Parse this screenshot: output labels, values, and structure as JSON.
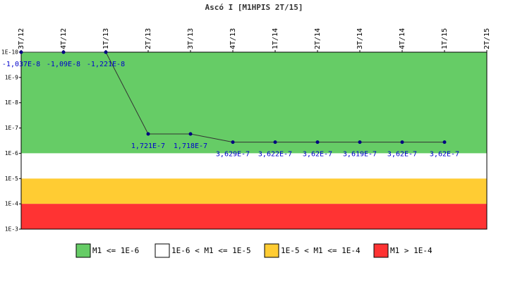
{
  "chart_data": {
    "type": "line",
    "title": "Ascó I [M1HPIS 2T/15]",
    "categories": [
      "3T/12",
      "4T/12",
      "1T/13",
      "2T/13",
      "3T/13",
      "4T/13",
      "1T/14",
      "2T/14",
      "3T/14",
      "4T/14",
      "1T/15",
      "2T/15"
    ],
    "series": [
      {
        "color": "#000080",
        "values": [
          -1.037e-08,
          -1.09e-08,
          -1.221e-08,
          1.721e-07,
          1.718e-07,
          3.629e-07,
          3.622e-07,
          3.62e-07,
          3.619e-07,
          3.62e-07,
          3.62e-07,
          null
        ],
        "value_labels": [
          "-1,037E-8",
          "-1,09E-8",
          "-1,221E-8",
          "1,721E-7",
          "1,718E-7",
          "3,629E-7",
          "3,622E-7",
          "3,62E-7",
          "3,619E-7",
          "3,62E-7",
          "3,62E-7",
          null
        ]
      }
    ],
    "log_scale": true,
    "ylim": [
      0.001,
      1e-10
    ],
    "yticks": [
      {
        "value": 1e-10,
        "label": "1E-10"
      },
      {
        "value": 1e-09,
        "label": "1E-9"
      },
      {
        "value": 1e-08,
        "label": "1E-8"
      },
      {
        "value": 1e-07,
        "label": "1E-7"
      },
      {
        "value": 1e-06,
        "label": "1E-6"
      },
      {
        "value": 1e-05,
        "label": "1E-5"
      },
      {
        "value": 0.0001,
        "label": "1E-4"
      },
      {
        "value": 0.001,
        "label": "1E-3"
      }
    ],
    "bands": [
      {
        "name": "M1 <= 1E-6",
        "color": "#66cc66",
        "from": 1e-10,
        "to": 1e-06
      },
      {
        "name": "1E-6 < M1 <= 1E-5",
        "color": "#ffffff",
        "from": 1e-06,
        "to": 1e-05
      },
      {
        "name": "1E-5 < M1 <= 1E-4",
        "color": "#ffcc33",
        "from": 1e-05,
        "to": 0.0001
      },
      {
        "name": "M1 > 1E-4",
        "color": "#ff3333",
        "from": 0.0001,
        "to": 0.001
      }
    ]
  }
}
